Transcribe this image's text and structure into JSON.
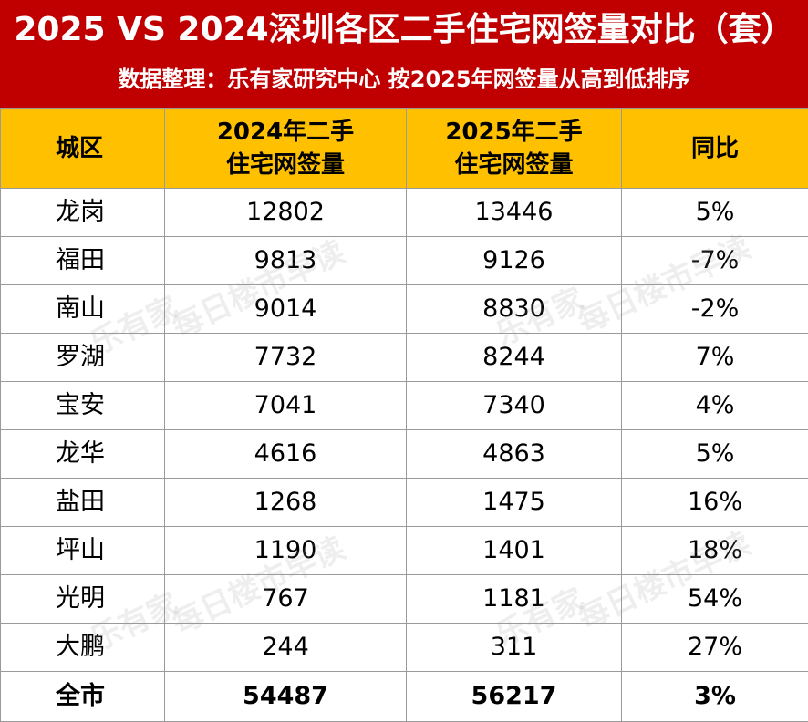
{
  "header": {
    "title": "2025 VS 2024深圳各区二手住宅网签量对比（套）",
    "subtitle": "数据整理：乐有家研究中心  按2025年网签量从高到低排序"
  },
  "table": {
    "columns": [
      "城区",
      "2024年二手住宅网签量",
      "2025年二手住宅网签量",
      "同比"
    ],
    "rows": [
      {
        "district": "龙岗",
        "y2024": "12802",
        "y2025": "13446",
        "yoy": "5%"
      },
      {
        "district": "福田",
        "y2024": "9813",
        "y2025": "9126",
        "yoy": "-7%"
      },
      {
        "district": "南山",
        "y2024": "9014",
        "y2025": "8830",
        "yoy": "-2%"
      },
      {
        "district": "罗湖",
        "y2024": "7732",
        "y2025": "8244",
        "yoy": "7%"
      },
      {
        "district": "宝安",
        "y2024": "7041",
        "y2025": "7340",
        "yoy": "4%"
      },
      {
        "district": "龙华",
        "y2024": "4616",
        "y2025": "4863",
        "yoy": "5%"
      },
      {
        "district": "盐田",
        "y2024": "1268",
        "y2025": "1475",
        "yoy": "16%"
      },
      {
        "district": "坪山",
        "y2024": "1190",
        "y2025": "1401",
        "yoy": "18%"
      },
      {
        "district": "光明",
        "y2024": "767",
        "y2025": "1181",
        "yoy": "54%"
      },
      {
        "district": "大鹏",
        "y2024": "244",
        "y2025": "311",
        "yoy": "27%"
      }
    ],
    "total": {
      "district": "全市",
      "y2024": "54487",
      "y2025": "56217",
      "yoy": "3%"
    }
  },
  "watermarks": {
    "brand": "乐有家",
    "channel": "每日楼市早读"
  },
  "colors": {
    "banner": "#c00000",
    "header_row": "#ffc000",
    "border": "#9a9a9a"
  }
}
